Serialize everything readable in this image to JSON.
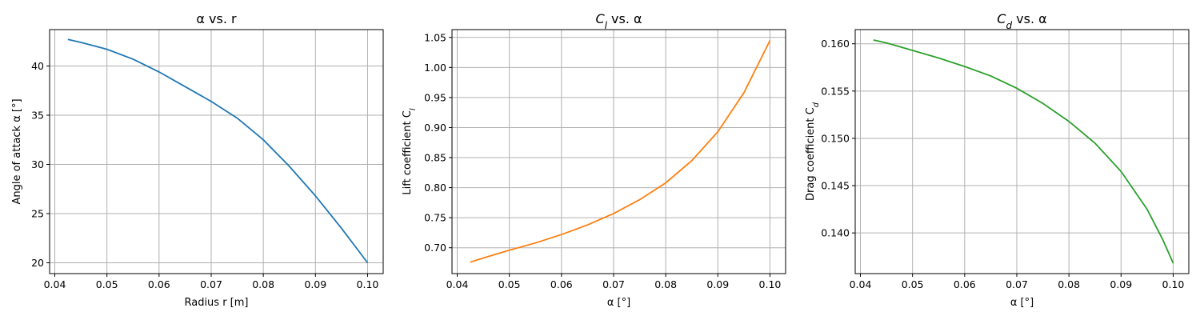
{
  "chart_data": [
    {
      "type": "line",
      "title": "α vs. r",
      "xlabel": "Radius r [m]",
      "ylabel": "Angle of attack α [°]",
      "xlim": [
        0.039,
        0.103
      ],
      "ylim": [
        18.9,
        43.7
      ],
      "xticks": [
        0.04,
        0.05,
        0.06,
        0.07,
        0.08,
        0.09,
        0.1
      ],
      "xtick_labels": [
        "0.04",
        "0.05",
        "0.06",
        "0.07",
        "0.08",
        "0.09",
        "0.10"
      ],
      "yticks": [
        20,
        25,
        30,
        35,
        40
      ],
      "ytick_labels": [
        "20",
        "25",
        "30",
        "35",
        "40"
      ],
      "grid": true,
      "color": "#1f77b4",
      "x": [
        0.0425,
        0.045,
        0.05,
        0.055,
        0.06,
        0.065,
        0.07,
        0.075,
        0.08,
        0.085,
        0.09,
        0.095,
        0.1
      ],
      "y": [
        42.7,
        42.4,
        41.7,
        40.7,
        39.4,
        37.9,
        36.4,
        34.7,
        32.5,
        29.8,
        26.8,
        23.5,
        20.0
      ]
    },
    {
      "type": "line",
      "title": "C_l vs. α",
      "title_parts": {
        "main": "C",
        "sub": "l",
        "rest": " vs. α"
      },
      "xlabel": "α [°]",
      "ylabel": "Lift coefficient C_l",
      "ylabel_parts": {
        "main": "Lift coefficient C",
        "sub": "l"
      },
      "xlim": [
        0.039,
        0.103
      ],
      "ylim": [
        0.657,
        1.063
      ],
      "xticks": [
        0.04,
        0.05,
        0.06,
        0.07,
        0.08,
        0.09,
        0.1
      ],
      "xtick_labels": [
        "0.04",
        "0.05",
        "0.06",
        "0.07",
        "0.08",
        "0.09",
        "0.10"
      ],
      "yticks": [
        0.7,
        0.75,
        0.8,
        0.85,
        0.9,
        0.95,
        1.0,
        1.05
      ],
      "ytick_labels": [
        "0.70",
        "0.75",
        "0.80",
        "0.85",
        "0.90",
        "0.95",
        "1.00",
        "1.05"
      ],
      "grid": true,
      "color": "#ff7f0e",
      "x": [
        0.0425,
        0.045,
        0.05,
        0.055,
        0.06,
        0.065,
        0.07,
        0.075,
        0.08,
        0.085,
        0.09,
        0.095,
        0.1
      ],
      "y": [
        0.676,
        0.683,
        0.696,
        0.708,
        0.722,
        0.738,
        0.757,
        0.78,
        0.808,
        0.845,
        0.893,
        0.958,
        1.045
      ]
    },
    {
      "type": "line",
      "title": "C_d vs. α",
      "title_parts": {
        "main": "C",
        "sub": "d",
        "rest": " vs. α"
      },
      "xlabel": "α [°]",
      "ylabel": "Drag coefficient C_d",
      "ylabel_parts": {
        "main": "Drag coefficient C",
        "sub": "d"
      },
      "xlim": [
        0.039,
        0.103
      ],
      "ylim": [
        0.1357,
        0.1615
      ],
      "xticks": [
        0.04,
        0.05,
        0.06,
        0.07,
        0.08,
        0.09,
        0.1
      ],
      "xtick_labels": [
        "0.04",
        "0.05",
        "0.06",
        "0.07",
        "0.08",
        "0.09",
        "0.10"
      ],
      "yticks": [
        0.14,
        0.145,
        0.15,
        0.155,
        0.16
      ],
      "ytick_labels": [
        "0.140",
        "0.145",
        "0.150",
        "0.155",
        "0.160"
      ],
      "grid": true,
      "color": "#2ca02c",
      "x": [
        0.0425,
        0.045,
        0.05,
        0.055,
        0.06,
        0.065,
        0.07,
        0.075,
        0.08,
        0.085,
        0.09,
        0.095,
        0.098,
        0.1
      ],
      "y": [
        0.1604,
        0.1601,
        0.1593,
        0.1585,
        0.1576,
        0.1566,
        0.1553,
        0.1537,
        0.1518,
        0.1495,
        0.1465,
        0.1425,
        0.1393,
        0.1368
      ]
    }
  ]
}
